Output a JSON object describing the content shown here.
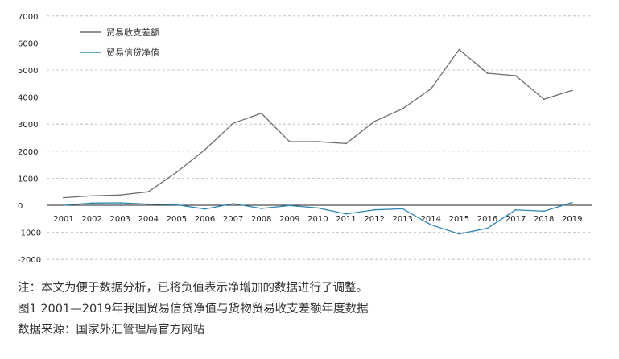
{
  "chart_data": {
    "type": "line",
    "x": [
      "2001",
      "2002",
      "2003",
      "2004",
      "2005",
      "2006",
      "2007",
      "2008",
      "2009",
      "2010",
      "2011",
      "2012",
      "2013",
      "2014",
      "2015",
      "2016",
      "2017",
      "2018",
      "2019"
    ],
    "series": [
      {
        "name": "贸易收支差额",
        "color": "#6d6d6d",
        "values": [
          280,
          350,
          380,
          500,
          1220,
          2050,
          3030,
          3400,
          2350,
          2350,
          2280,
          3100,
          3570,
          4300,
          5760,
          4880,
          4790,
          3920,
          4250
        ]
      },
      {
        "name": "贸易信贷净值",
        "color": "#2f86b4",
        "values": [
          0,
          80,
          90,
          40,
          20,
          -140,
          60,
          -120,
          -10,
          -100,
          -320,
          -170,
          -130,
          -720,
          -1060,
          -850,
          -170,
          -220,
          100
        ]
      }
    ],
    "ylim": [
      -2000,
      7000
    ],
    "yticks": [
      -2000,
      -1000,
      0,
      1000,
      2000,
      3000,
      4000,
      5000,
      6000,
      7000
    ],
    "ytick_labels": [
      "-2000",
      "-1000",
      "0",
      "1000",
      "2000",
      "3000",
      "4000",
      "5000",
      "6000",
      "7000"
    ],
    "grid": "dashed-horizontal",
    "legend": "top-left"
  },
  "captions": {
    "note": "注：本文为便于数据分析，已将负值表示净增加的数据进行了调整。",
    "figure": "图1  2001—2019年我国贸易信贷净值与货物贸易收支差额年度数据",
    "source": "数据来源：国家外汇管理局官方网站"
  }
}
